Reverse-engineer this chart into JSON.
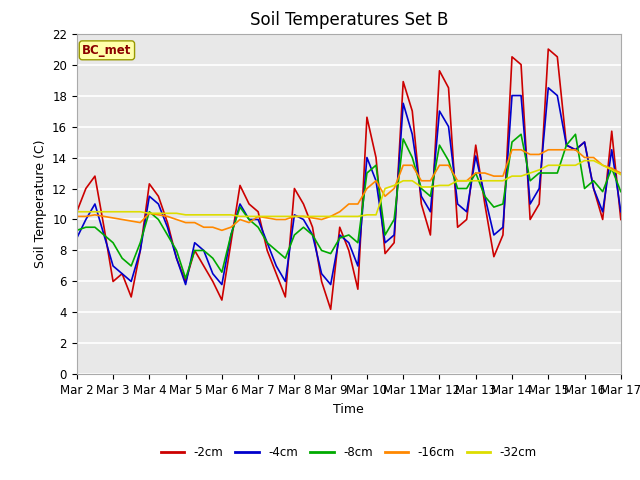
{
  "title": "Soil Temperatures Set B",
  "xlabel": "Time",
  "ylabel": "Soil Temperature (C)",
  "annotation": "BC_met",
  "ylim": [
    0,
    22
  ],
  "xlim": [
    0,
    15
  ],
  "xtick_labels": [
    "Mar 2",
    "Mar 3",
    "Mar 4",
    "Mar 5",
    "Mar 6",
    "Mar 7",
    "Mar 8",
    "Mar 9",
    "Mar 10",
    "Mar 11",
    "Mar 12",
    "Mar 13",
    "Mar 14",
    "Mar 15",
    "Mar 16",
    "Mar 17"
  ],
  "xtick_positions": [
    0,
    1,
    2,
    3,
    4,
    5,
    6,
    7,
    8,
    9,
    10,
    11,
    12,
    13,
    14,
    15
  ],
  "colors": {
    "-2cm": "#cc0000",
    "-4cm": "#0000cc",
    "-8cm": "#00aa00",
    "-16cm": "#ff8800",
    "-32cm": "#dddd00"
  },
  "linewidth": 1.2,
  "fig_bg": "#ffffff",
  "plot_bg": "#e8e8e8",
  "grid_color": "#ffffff",
  "t": [
    0.0,
    0.25,
    0.5,
    0.75,
    1.0,
    1.25,
    1.5,
    1.75,
    2.0,
    2.25,
    2.5,
    2.75,
    3.0,
    3.25,
    3.5,
    3.75,
    4.0,
    4.25,
    4.5,
    4.75,
    5.0,
    5.25,
    5.5,
    5.75,
    6.0,
    6.25,
    6.5,
    6.75,
    7.0,
    7.25,
    7.5,
    7.75,
    8.0,
    8.25,
    8.5,
    8.75,
    9.0,
    9.25,
    9.5,
    9.75,
    10.0,
    10.25,
    10.5,
    10.75,
    11.0,
    11.25,
    11.5,
    11.75,
    12.0,
    12.25,
    12.5,
    12.75,
    13.0,
    13.25,
    13.5,
    13.75,
    14.0,
    14.25,
    14.5,
    14.75,
    15.0
  ],
  "cm2": [
    10.5,
    12.0,
    12.8,
    9.5,
    6.0,
    6.5,
    5.0,
    8.0,
    12.3,
    11.5,
    9.8,
    7.5,
    6.0,
    8.0,
    7.0,
    6.0,
    4.8,
    8.5,
    12.2,
    11.0,
    10.5,
    8.0,
    6.5,
    5.0,
    12.0,
    11.0,
    9.5,
    6.0,
    4.2,
    9.5,
    8.0,
    5.5,
    16.6,
    14.0,
    7.8,
    8.5,
    18.9,
    17.0,
    11.0,
    9.0,
    19.6,
    18.5,
    9.5,
    10.0,
    14.8,
    11.0,
    7.6,
    9.0,
    20.5,
    20.0,
    10.0,
    11.0,
    21.0,
    20.5,
    14.8,
    14.5,
    15.0,
    12.0,
    10.0,
    15.7,
    10.0
  ],
  "cm4": [
    8.8,
    10.0,
    11.0,
    9.0,
    7.0,
    6.5,
    6.0,
    8.0,
    11.5,
    11.0,
    9.5,
    7.5,
    5.8,
    8.5,
    8.0,
    6.5,
    5.8,
    9.0,
    11.0,
    10.0,
    10.0,
    8.5,
    7.0,
    6.0,
    10.3,
    10.0,
    9.0,
    6.5,
    5.8,
    9.0,
    8.5,
    7.0,
    14.0,
    12.5,
    8.5,
    9.0,
    17.5,
    15.5,
    11.5,
    10.5,
    17.0,
    16.0,
    11.0,
    10.5,
    14.1,
    11.5,
    9.0,
    9.5,
    18.0,
    18.0,
    11.0,
    12.0,
    18.5,
    18.0,
    14.8,
    14.5,
    15.0,
    12.0,
    10.5,
    14.5,
    10.5
  ],
  "cm8": [
    9.3,
    9.5,
    9.5,
    9.0,
    8.5,
    7.5,
    7.0,
    8.5,
    10.5,
    10.0,
    9.0,
    8.0,
    6.2,
    8.0,
    8.0,
    7.5,
    6.6,
    9.0,
    10.8,
    10.0,
    9.5,
    8.5,
    8.0,
    7.5,
    9.0,
    9.5,
    9.0,
    8.0,
    7.8,
    8.8,
    9.0,
    8.5,
    13.0,
    13.5,
    9.0,
    10.0,
    15.2,
    14.0,
    12.0,
    11.5,
    14.8,
    13.8,
    12.0,
    12.0,
    13.0,
    11.5,
    10.8,
    11.0,
    15.0,
    15.5,
    12.5,
    13.0,
    13.0,
    13.0,
    14.8,
    15.5,
    12.0,
    12.5,
    11.8,
    13.3,
    11.8
  ],
  "cm16": [
    10.2,
    10.2,
    10.3,
    10.2,
    10.1,
    10.0,
    9.9,
    9.8,
    10.4,
    10.3,
    10.2,
    10.0,
    9.8,
    9.8,
    9.5,
    9.5,
    9.3,
    9.5,
    10.0,
    9.8,
    10.2,
    10.1,
    10.0,
    10.0,
    10.2,
    10.2,
    10.1,
    10.0,
    10.2,
    10.5,
    11.0,
    11.0,
    12.0,
    12.5,
    11.5,
    12.0,
    13.5,
    13.5,
    12.5,
    12.5,
    13.5,
    13.5,
    12.5,
    12.5,
    13.0,
    13.0,
    12.8,
    12.8,
    14.5,
    14.5,
    14.2,
    14.2,
    14.5,
    14.5,
    14.5,
    14.5,
    14.0,
    14.0,
    13.5,
    13.3,
    13.0
  ],
  "cm32": [
    10.5,
    10.5,
    10.5,
    10.5,
    10.5,
    10.5,
    10.5,
    10.5,
    10.4,
    10.4,
    10.4,
    10.4,
    10.3,
    10.3,
    10.3,
    10.3,
    10.3,
    10.3,
    10.2,
    10.2,
    10.2,
    10.2,
    10.2,
    10.2,
    10.2,
    10.2,
    10.2,
    10.2,
    10.2,
    10.2,
    10.2,
    10.2,
    10.3,
    10.3,
    12.0,
    12.2,
    12.5,
    12.5,
    12.1,
    12.1,
    12.2,
    12.2,
    12.5,
    12.5,
    12.5,
    12.5,
    12.5,
    12.5,
    12.8,
    12.8,
    13.0,
    13.2,
    13.5,
    13.5,
    13.5,
    13.5,
    13.8,
    13.8,
    13.5,
    13.2,
    12.9
  ]
}
